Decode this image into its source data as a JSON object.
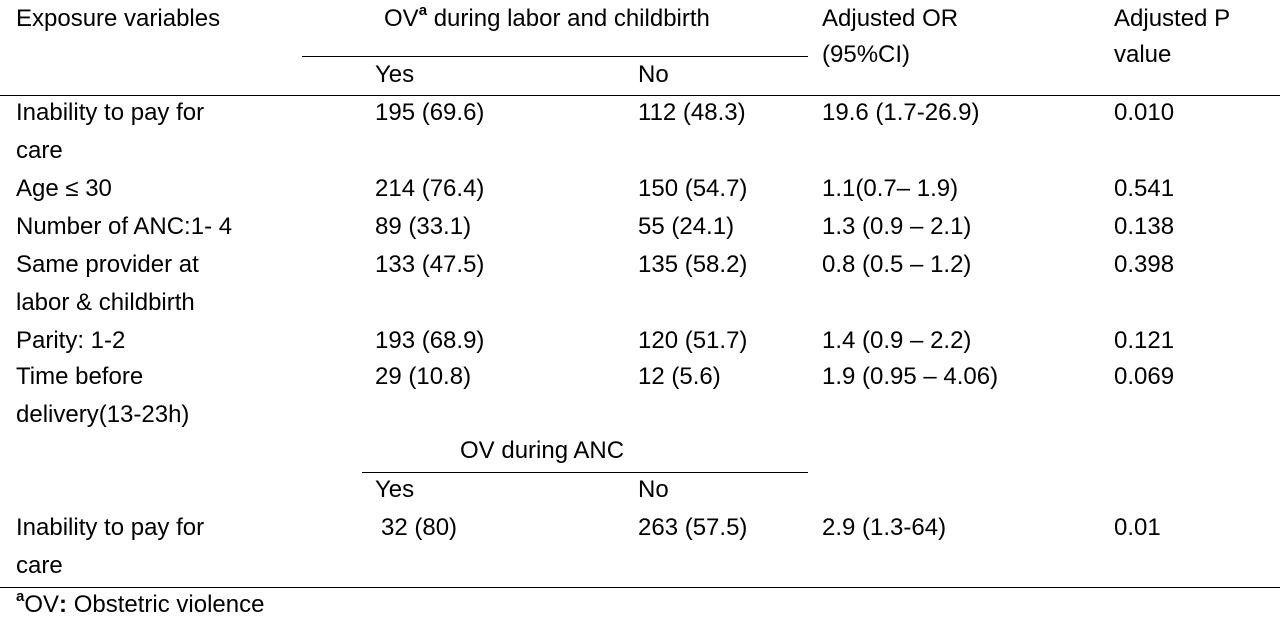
{
  "table": {
    "header": {
      "exposure": "Exposure variables",
      "ov_labor_main": "OV",
      "ov_labor_sup": "a",
      "ov_labor_rest": " during labor and childbirth",
      "yes": "Yes",
      "no": "No",
      "adj_or_line1": "Adjusted OR",
      "adj_or_line2": "(95%CI)",
      "adj_p_line1": "Adjusted P",
      "adj_p_line2": "value"
    },
    "rows": [
      {
        "var1": "Inability to pay for",
        "var2": "care",
        "yes": "195 (69.6)",
        "no": "112 (48.3)",
        "or": "19.6 (1.7-26.9)",
        "p": "0.010"
      },
      {
        "var1": "Age ≤ 30",
        "var2": "",
        "yes": "214 (76.4)",
        "no": "150 (54.7)",
        "or": "1.1(0.7– 1.9)",
        "p": "0.541"
      },
      {
        "var1": "Number of ANC:1- 4",
        "var2": "",
        "yes": "89 (33.1)",
        "no": "55 (24.1)",
        "or": "1.3 (0.9 – 2.1)",
        "p": "0.138"
      },
      {
        "var1": "Same provider at",
        "var2": "labor & childbirth",
        "yes": "133 (47.5)",
        "no": "135 (58.2)",
        "or": "0.8 (0.5 – 1.2)",
        "p": "0.398"
      },
      {
        "var1": "Parity: 1-2",
        "var2": "",
        "yes": "193 (68.9)",
        "no": "120 (51.7)",
        "or": "1.4 (0.9 – 2.2)",
        "p": "0.121"
      },
      {
        "var1": "Time before",
        "var2": "delivery(13-23h)",
        "yes": "29 (10.8)",
        "no": "12 (5.6)",
        "or": "1.9 (0.95 – 4.06)",
        "p": "0.069"
      }
    ],
    "anc_section": {
      "title": "OV during ANC",
      "yes": "Yes",
      "no": "No",
      "row": {
        "var1": "Inability to pay for",
        "var2": "care",
        "yes": "32 (80)",
        "no": "263 (57.5)",
        "or": "2.9 (1.3-64)",
        "p": "0.01"
      }
    },
    "footnote": {
      "sup": "a",
      "abbr": "OV",
      "colon": ":",
      "text": " Obstetric violence"
    }
  }
}
